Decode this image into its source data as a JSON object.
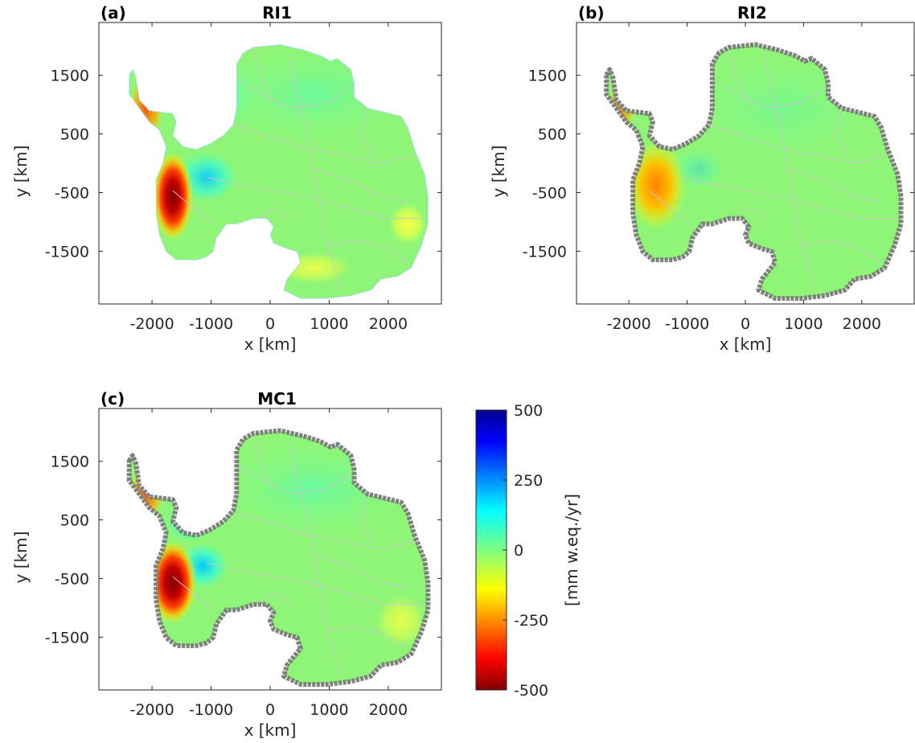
{
  "chart_data": [
    {
      "type": "heatmap",
      "panel_label": "(a)",
      "title": "RI1",
      "xlabel": "x [km]",
      "ylabel": "y [km]",
      "xticks": [
        "-2000",
        "-1000",
        "0",
        "1000",
        "2000"
      ],
      "yticks": [
        "1500",
        "500",
        "-500",
        "-1500"
      ],
      "xlim": [
        -2900,
        2900
      ],
      "ylim": [
        -2400,
        2400
      ],
      "edge_markers": false,
      "grid": false
    },
    {
      "type": "heatmap",
      "panel_label": "(b)",
      "title": "RI2",
      "xlabel": "x [km]",
      "ylabel": "y [km]",
      "xticks": [
        "-2000",
        "-1000",
        "0",
        "1000",
        "2000"
      ],
      "yticks": [
        "1500",
        "500",
        "-500",
        "-1500"
      ],
      "xlim": [
        -2900,
        2900
      ],
      "ylim": [
        -2400,
        2400
      ],
      "edge_markers": true,
      "grid": false
    },
    {
      "type": "heatmap",
      "panel_label": "(c)",
      "title": "MC1",
      "xlabel": "x [km]",
      "ylabel": "y [km]",
      "xticks": [
        "-2000",
        "-1000",
        "0",
        "1000",
        "2000"
      ],
      "yticks": [
        "1500",
        "500",
        "-500",
        "-1500"
      ],
      "xlim": [
        -2900,
        2900
      ],
      "ylim": [
        -2400,
        2400
      ],
      "edge_markers": true,
      "grid": false
    }
  ],
  "colorbar": {
    "label": "[mm w.eq./yr]",
    "ticks": [
      "500",
      "250",
      "0",
      "-250",
      "-500"
    ],
    "range": [
      -500,
      500
    ],
    "colormap": "jet"
  },
  "colors": {
    "base_fill": "#8ef577",
    "edge_markers": "#7f7f7f",
    "basin_lines": "#c8c8c8",
    "loss_strong": "#800000",
    "gain_strong": "#00008f"
  }
}
